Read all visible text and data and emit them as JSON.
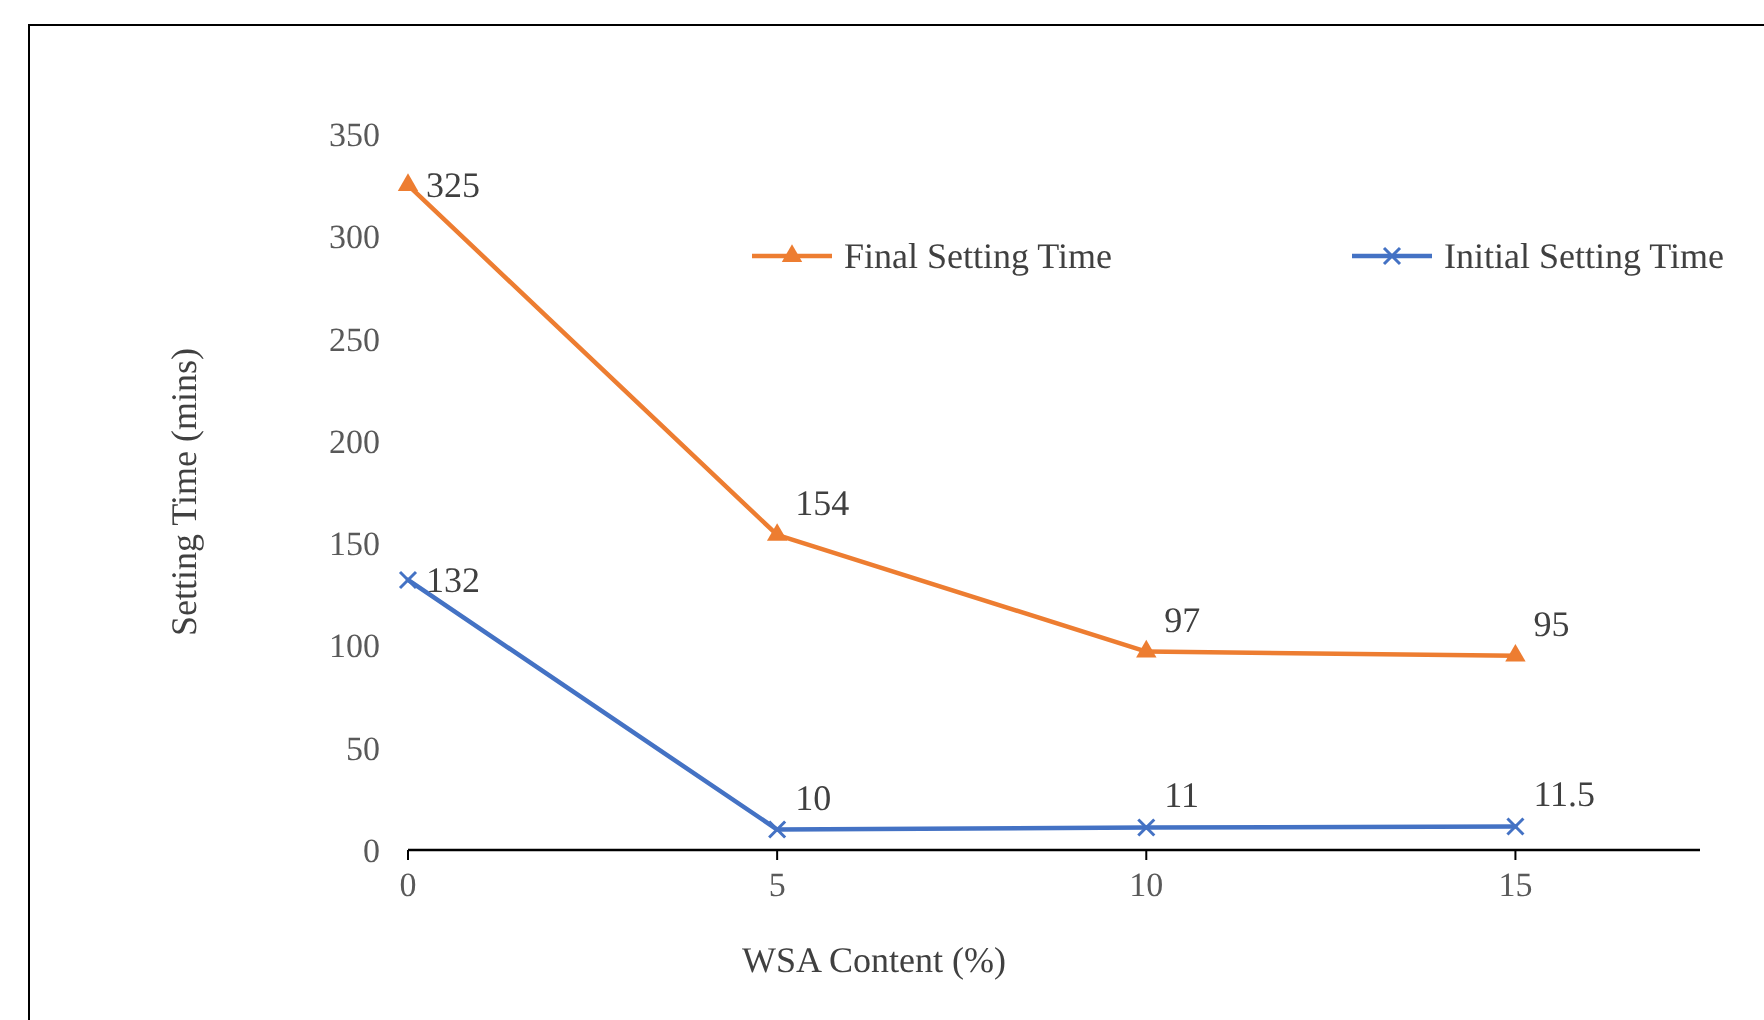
{
  "chart_data": {
    "type": "line",
    "xlabel": "WSA Content (%)",
    "ylabel": "Setting Time (mins)",
    "x": [
      0,
      5,
      10,
      15
    ],
    "series": [
      {
        "name": "Final Setting Time",
        "color": "#ed7d31",
        "marker": "triangle",
        "values": [
          325,
          154,
          97,
          95
        ]
      },
      {
        "name": "Initial Setting Time",
        "color": "#4472c4",
        "marker": "cross",
        "values": [
          132,
          10,
          11,
          11.5
        ]
      }
    ],
    "xlim": [
      0,
      17.5
    ],
    "xticks": [
      0,
      5,
      10,
      15
    ],
    "ylim": [
      0,
      350
    ],
    "yticks": [
      0,
      50,
      100,
      150,
      200,
      250,
      300,
      350
    ],
    "data_labels": true,
    "grid": false,
    "legend": "top right"
  }
}
